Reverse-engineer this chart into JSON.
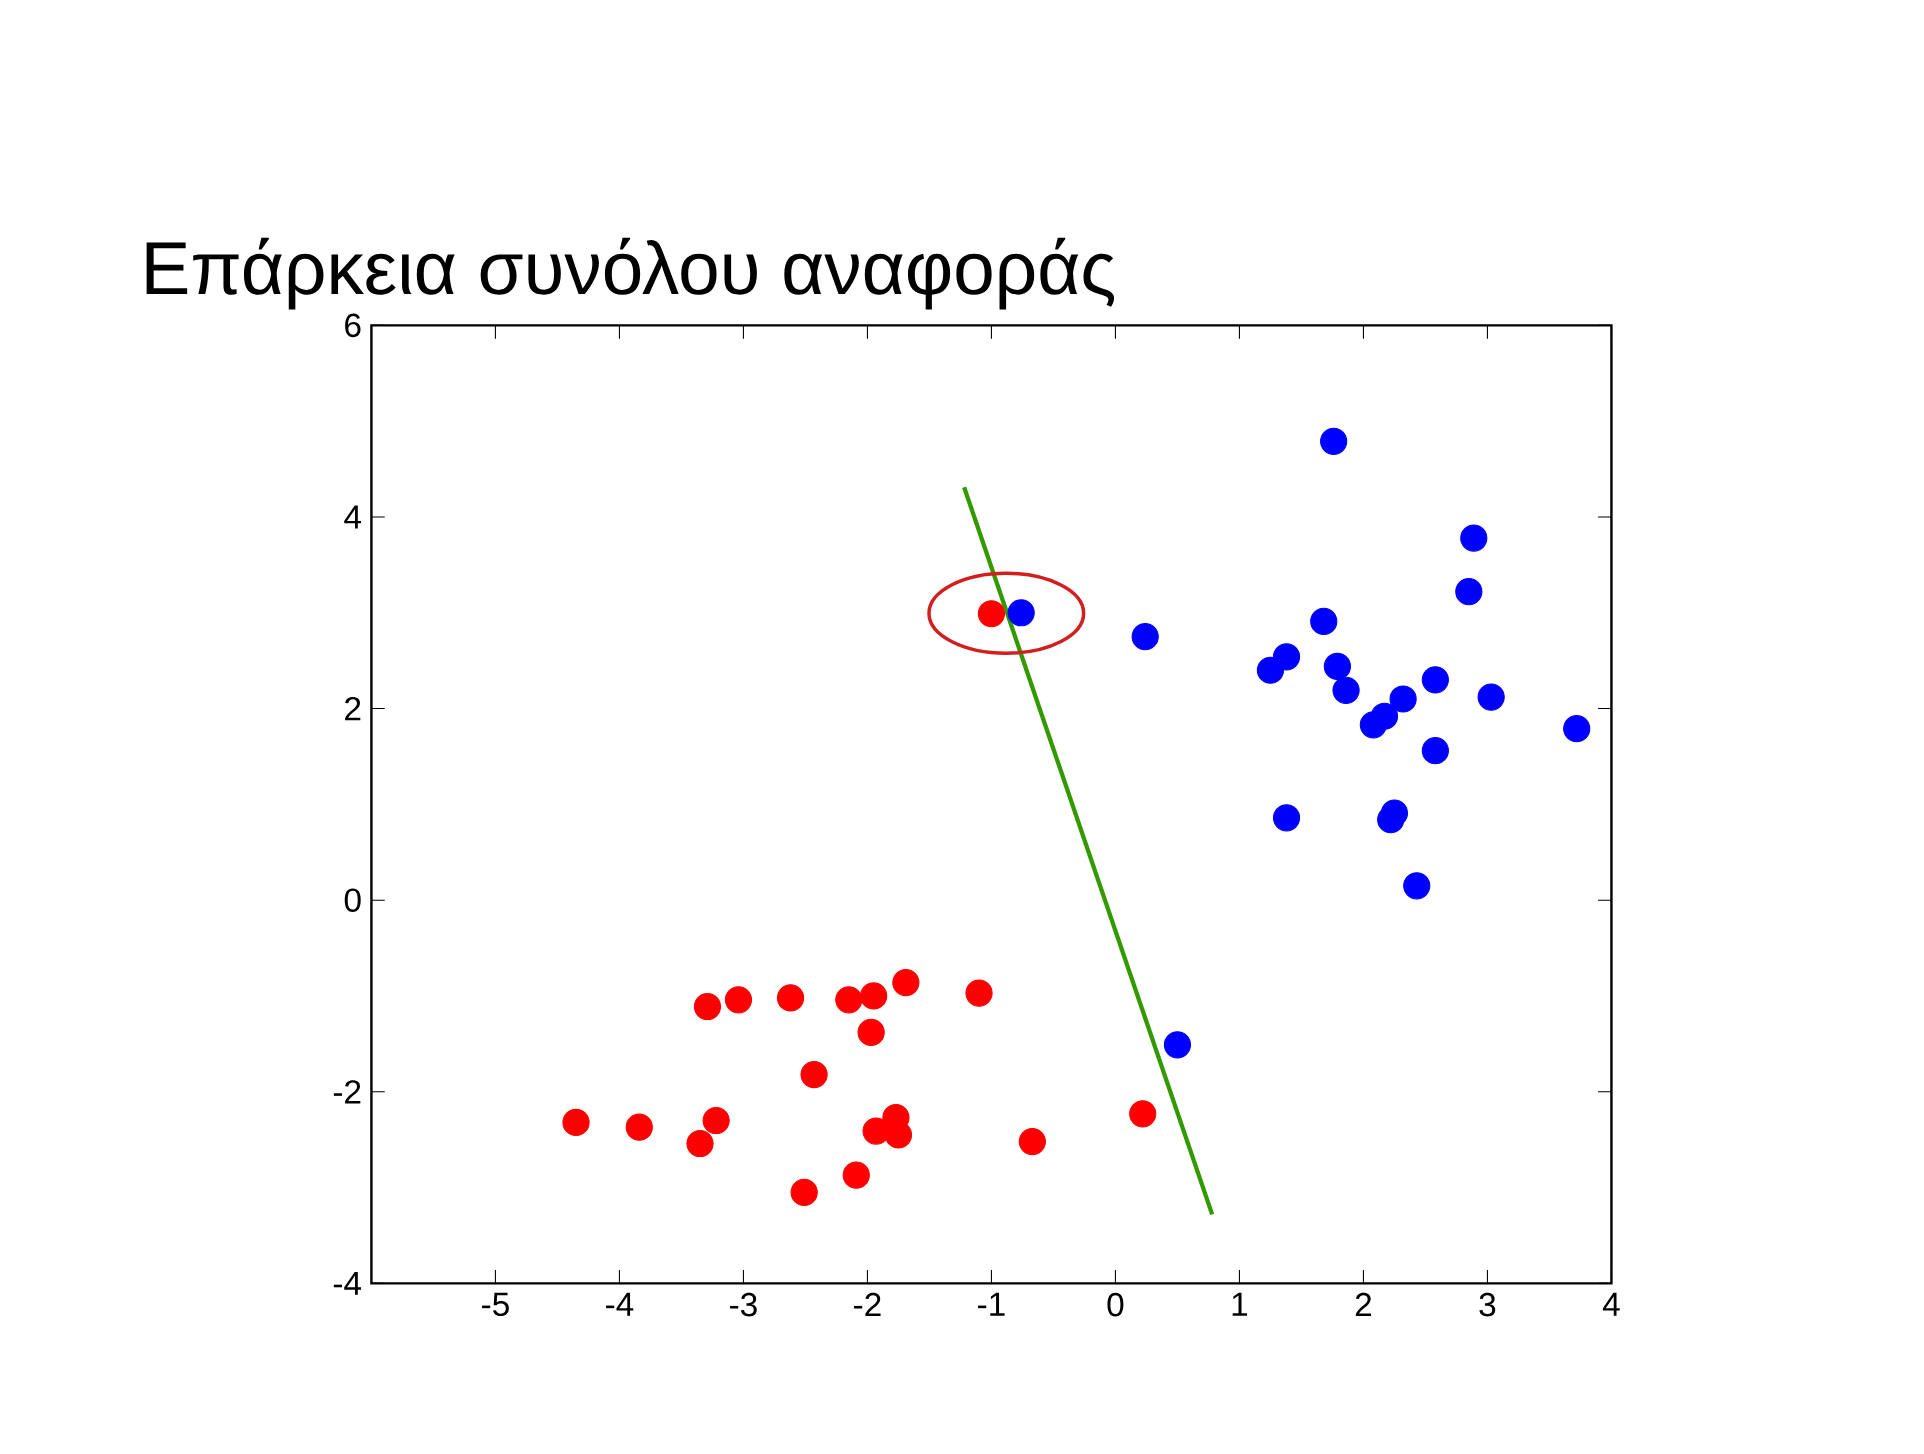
{
  "chart_data": {
    "type": "scatter",
    "title": "Επάρκεια συνόλου αναφοράς",
    "xlim": [
      -6,
      4
    ],
    "ylim": [
      -4,
      6
    ],
    "xticks": [
      -5,
      -4,
      -3,
      -2,
      -1,
      0,
      1,
      2,
      3,
      4
    ],
    "yticks": [
      -4,
      -2,
      0,
      2,
      4,
      6
    ],
    "grid": false,
    "series": [
      {
        "color": "#ff0000",
        "marker": "circle",
        "x": [
          -4.35,
          -3.84,
          -3.29,
          -3.04,
          -2.62,
          -2.15,
          -1.95,
          -1.69,
          -1.1,
          -1.97,
          -2.43,
          -3.22,
          -3.35,
          -1.77,
          -1.93,
          -1.75,
          -2.09,
          -2.51,
          -0.67,
          0.22,
          -1.0
        ],
        "values": [
          -2.32,
          -2.37,
          -1.11,
          -1.04,
          -1.02,
          -1.04,
          -1.0,
          -0.86,
          -0.97,
          -1.38,
          -1.82,
          -2.3,
          -2.54,
          -2.27,
          -2.41,
          -2.45,
          -2.87,
          -3.05,
          -2.52,
          -2.23,
          2.99
        ]
      },
      {
        "color": "#0000ff",
        "marker": "circle",
        "x": [
          -0.76,
          0.24,
          0.5,
          1.76,
          2.89,
          2.85,
          1.68,
          1.38,
          1.25,
          1.79,
          1.86,
          2.32,
          2.58,
          3.03,
          2.17,
          2.08,
          2.58,
          3.72,
          1.38,
          2.25,
          2.22,
          2.43
        ],
        "values": [
          3.0,
          2.75,
          -1.51,
          4.79,
          3.78,
          3.22,
          2.91,
          2.54,
          2.4,
          2.44,
          2.19,
          2.1,
          2.3,
          2.12,
          1.92,
          1.83,
          1.56,
          1.79,
          0.86,
          0.91,
          0.84,
          0.15
        ]
      },
      {
        "type": "line",
        "color": "#339900",
        "x": [
          -1.22,
          0.78
        ],
        "values": [
          4.31,
          -3.28
        ]
      }
    ]
  }
}
